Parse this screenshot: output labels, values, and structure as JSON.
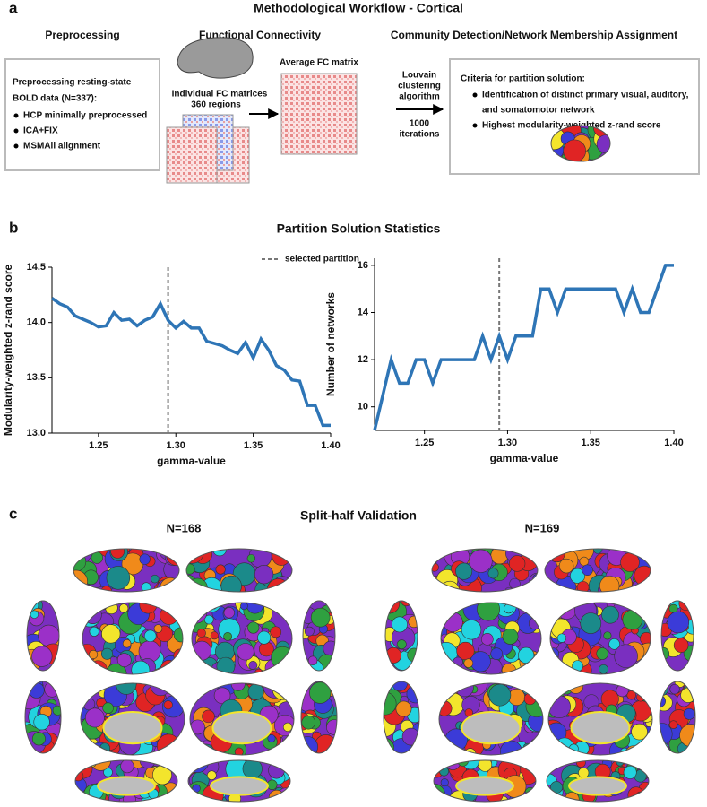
{
  "panel_a": {
    "label": "a",
    "title": "Methodological Workflow - Cortical",
    "columns": [
      "Preprocessing",
      "Functional Connectivity",
      "Community Detection/Network Membership Assignment"
    ],
    "preprocessing": {
      "heading": [
        "Preprocessing resting-state",
        "BOLD data (N=337):"
      ],
      "items": [
        "HCP minimally preprocessed",
        "ICA+FIX",
        "MSMAll alignment"
      ]
    },
    "fc": {
      "individual": [
        "Individual FC matrices",
        "360 regions"
      ],
      "average": "Average FC matrix"
    },
    "louvain": {
      "method": [
        "Louvain",
        "clustering",
        "algorithm"
      ],
      "iterations": [
        "1000",
        "iterations"
      ]
    },
    "criteria": {
      "heading": "Criteria for partition solution:",
      "items": [
        [
          "Identification of distinct primary visual, auditory,",
          "and somatomotor network"
        ],
        [
          "Highest modularity-weighted z-rand score"
        ]
      ]
    }
  },
  "panel_b": {
    "label": "b",
    "title": "Partition Solution Statistics",
    "legend": "selected partition"
  },
  "chart_data": [
    {
      "type": "line",
      "xlabel": "gamma-value",
      "ylabel": "Modularity-weighted z-rand score",
      "x": [
        1.22,
        1.225,
        1.23,
        1.235,
        1.24,
        1.245,
        1.25,
        1.255,
        1.26,
        1.265,
        1.27,
        1.275,
        1.28,
        1.285,
        1.29,
        1.295,
        1.3,
        1.305,
        1.31,
        1.315,
        1.32,
        1.325,
        1.33,
        1.335,
        1.34,
        1.345,
        1.35,
        1.355,
        1.36,
        1.365,
        1.37,
        1.375,
        1.38,
        1.385,
        1.39,
        1.395,
        1.4
      ],
      "series": [
        {
          "color": "#2e75b6",
          "values": [
            14.22,
            14.17,
            14.14,
            14.06,
            14.03,
            14.0,
            13.96,
            13.97,
            14.09,
            14.02,
            14.03,
            13.97,
            14.02,
            14.05,
            14.17,
            14.02,
            13.95,
            14.01,
            13.95,
            13.95,
            13.83,
            13.81,
            13.79,
            13.75,
            13.72,
            13.82,
            13.68,
            13.85,
            13.75,
            13.61,
            13.57,
            13.48,
            13.47,
            13.25,
            13.25,
            13.07,
            13.07
          ]
        }
      ],
      "vline": 1.295,
      "xlim": [
        1.22,
        1.4
      ],
      "ylim": [
        13.0,
        14.5
      ],
      "xticks": [
        1.25,
        {
          "value": 1.3,
          "label": "1.30"
        },
        1.35,
        {
          "value": 1.4,
          "label": "1.40"
        }
      ],
      "yticks": [
        {
          "value": 13.0,
          "label": "13.0"
        },
        13.5,
        {
          "value": 14.0,
          "label": "14.0"
        },
        14.5
      ]
    },
    {
      "type": "line",
      "xlabel": "gamma-value",
      "ylabel": "Number of networks",
      "x": [
        1.22,
        1.225,
        1.23,
        1.235,
        1.24,
        1.245,
        1.25,
        1.255,
        1.26,
        1.265,
        1.27,
        1.275,
        1.28,
        1.285,
        1.29,
        1.295,
        1.3,
        1.305,
        1.31,
        1.315,
        1.32,
        1.325,
        1.33,
        1.335,
        1.34,
        1.345,
        1.35,
        1.355,
        1.36,
        1.365,
        1.37,
        1.375,
        1.38,
        1.385,
        1.39,
        1.395,
        1.4
      ],
      "series": [
        {
          "color": "#2e75b6",
          "values": [
            9,
            10.5,
            12,
            11,
            11,
            12,
            12,
            11,
            12,
            12,
            12,
            12,
            12,
            13,
            12,
            13,
            12,
            13,
            13,
            13,
            15,
            15,
            14,
            15,
            15,
            15,
            15,
            15,
            15,
            15,
            14,
            15,
            14,
            14,
            15,
            16,
            16
          ]
        }
      ],
      "vline": 1.295,
      "xlim": [
        1.22,
        1.4
      ],
      "ylim": [
        9,
        16.3
      ],
      "xticks": [
        1.25,
        {
          "value": 1.3,
          "label": "1.30"
        },
        1.35,
        {
          "value": 1.4,
          "label": "1.40"
        }
      ],
      "yticks": [
        10,
        12,
        14,
        16
      ]
    }
  ],
  "panel_c": {
    "label": "c",
    "title": "Split-half Validation",
    "groups": [
      "N=168",
      "N=169"
    ]
  }
}
